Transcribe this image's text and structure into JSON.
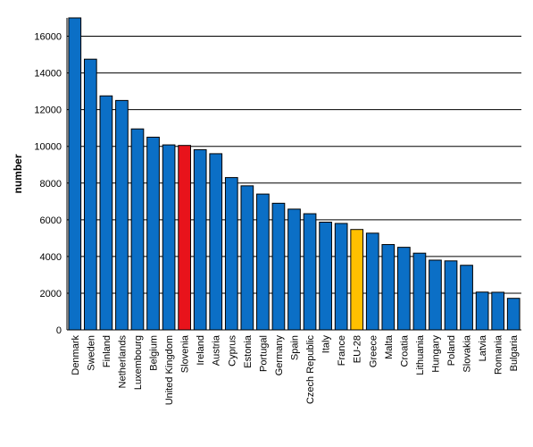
{
  "chart_data": {
    "type": "bar",
    "title": "",
    "xlabel": "",
    "ylabel": "number",
    "ylim": [
      0,
      17000
    ],
    "yticks": [
      0,
      2000,
      4000,
      6000,
      8000,
      10000,
      12000,
      14000,
      16000
    ],
    "ytick_labels": [
      "0",
      "2000",
      "4000",
      "6000",
      "8000",
      "10000",
      "12000",
      "14000",
      "16000"
    ],
    "grid": "horizontal",
    "legend": "none",
    "colors": {
      "default": "#0b6fc6",
      "highlight": "#e8131b",
      "aggregate": "#ffc000",
      "outline": "#000000"
    },
    "categories": [
      "Denmark",
      "Sweden",
      "Finland",
      "Netherlands",
      "Luxembourg",
      "Belgium",
      "United Kingdom",
      "Slovenia",
      "Ireland",
      "Austria",
      "Cyprus",
      "Estonia",
      "Portugal",
      "Germany",
      "Spain",
      "Czech Republic",
      "Italy",
      "France",
      "EU-28",
      "Greece",
      "Malta",
      "Croatia",
      "Lithuania",
      "Hungary",
      "Poland",
      "Slovakia",
      "Latvia",
      "Romania",
      "Bulgaria"
    ],
    "values": [
      17000,
      14750,
      12750,
      12500,
      10950,
      10500,
      10080,
      10050,
      9820,
      9600,
      8300,
      7850,
      7400,
      6900,
      6580,
      6330,
      5870,
      5800,
      5470,
      5270,
      4650,
      4500,
      4180,
      3800,
      3760,
      3520,
      2060,
      2050,
      1720
    ],
    "bar_colors": [
      "default",
      "default",
      "default",
      "default",
      "default",
      "default",
      "default",
      "highlight",
      "default",
      "default",
      "default",
      "default",
      "default",
      "default",
      "default",
      "default",
      "default",
      "default",
      "aggregate",
      "default",
      "default",
      "default",
      "default",
      "default",
      "default",
      "default",
      "default",
      "default",
      "default"
    ]
  }
}
